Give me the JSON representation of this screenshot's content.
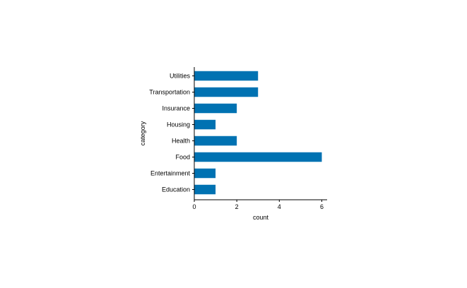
{
  "chart_data": {
    "type": "bar",
    "orientation": "horizontal",
    "title": "",
    "xlabel": "count",
    "ylabel": "category",
    "categories": [
      "Utilities",
      "Transportation",
      "Insurance",
      "Housing",
      "Health",
      "Food",
      "Entertainment",
      "Education"
    ],
    "values": [
      3,
      3,
      2,
      1,
      2,
      6,
      1,
      1
    ],
    "xlim": [
      0,
      6.25
    ],
    "xticks": [
      0,
      2,
      4,
      6
    ],
    "grid": false,
    "legend": "none",
    "bar_color": "#0072B2",
    "axis_color": "#000000"
  }
}
